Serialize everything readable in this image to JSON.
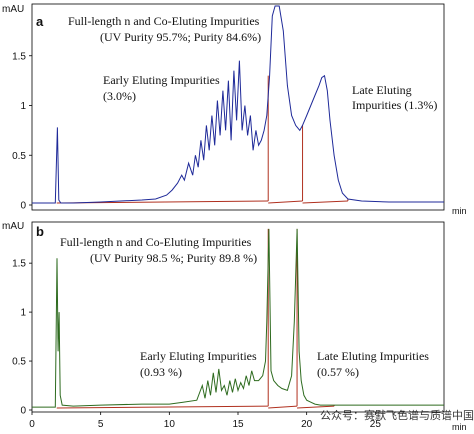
{
  "chart_data": [
    {
      "panel_label": "a",
      "type": "line",
      "y_unit": "mAU",
      "x_unit": "min",
      "xlim": [
        0,
        30
      ],
      "ylim": [
        0,
        2.0
      ],
      "y_ticks": [
        0,
        0.5,
        1.0,
        1.5
      ],
      "y_tick_labels": [
        "0",
        "0.5",
        "1",
        "1.5"
      ],
      "color": "#1f2a99",
      "annotations": [
        "Full-length n and Co-Eluting Impurities",
        "(UV Purity 95.7%; Purity 84.6%)",
        "Early Eluting Impurities",
        "(3.0%)",
        "Late Eluting",
        "Impurities (1.3%)"
      ],
      "baseline_segments": [
        [
          1.8,
          17.2
        ],
        [
          17.2,
          19.7
        ],
        [
          19.7,
          23.0
        ]
      ],
      "x": [
        0,
        1,
        1.7,
        1.85,
        1.95,
        2.1,
        3,
        5,
        8,
        9,
        9.8,
        10.2,
        10.6,
        10.9,
        11.1,
        11.4,
        11.7,
        11.9,
        12.1,
        12.3,
        12.5,
        12.7,
        12.9,
        13.1,
        13.3,
        13.5,
        13.7,
        13.9,
        14.1,
        14.3,
        14.5,
        14.7,
        14.9,
        15.1,
        15.3,
        15.5,
        15.7,
        15.9,
        16.1,
        16.3,
        16.5,
        16.7,
        16.9,
        17.1,
        17.3,
        17.5,
        17.7,
        17.85,
        18.0,
        18.3,
        18.6,
        18.9,
        19.2,
        19.5,
        19.7,
        20.0,
        20.3,
        20.6,
        20.9,
        21.1,
        21.3,
        21.5,
        21.7,
        22.0,
        22.3,
        22.6,
        23.0,
        24,
        26,
        28,
        30
      ],
      "y": [
        0.02,
        0.02,
        0.02,
        0.78,
        0.05,
        0.02,
        0.02,
        0.03,
        0.05,
        0.06,
        0.1,
        0.15,
        0.22,
        0.3,
        0.25,
        0.42,
        0.3,
        0.5,
        0.38,
        0.65,
        0.45,
        0.8,
        0.55,
        0.9,
        0.6,
        1.05,
        0.7,
        1.15,
        0.75,
        1.25,
        0.65,
        1.35,
        0.85,
        1.45,
        0.75,
        1.0,
        0.7,
        0.9,
        0.55,
        0.75,
        0.6,
        0.65,
        0.75,
        0.9,
        1.3,
        1.9,
        2.0,
        2.0,
        2.0,
        1.75,
        1.2,
        0.9,
        0.8,
        0.75,
        0.8,
        0.9,
        1.0,
        1.1,
        1.2,
        1.28,
        1.3,
        1.15,
        0.85,
        0.5,
        0.25,
        0.12,
        0.06,
        0.04,
        0.03,
        0.03,
        0.03
      ]
    },
    {
      "panel_label": "b",
      "type": "line",
      "y_unit": "mAU",
      "x_unit": "min",
      "xlim": [
        0,
        30
      ],
      "ylim": [
        0,
        1.9
      ],
      "y_ticks": [
        0,
        0.5,
        1.0,
        1.5
      ],
      "y_tick_labels": [
        "0",
        "0.5",
        "1",
        "1.5"
      ],
      "x_ticks": [
        0,
        5,
        10,
        15,
        20,
        25
      ],
      "color": "#2e6b1f",
      "annotations": [
        "Full-length n and Co-Eluting Impurities",
        "(UV Purity 98.5 %; Purity 89.8 %)",
        "Early Eluting Impurities",
        "(0.93 %)",
        "Late Eluting Impurities",
        "(0.57 %)"
      ],
      "baseline_segments": [
        [
          1.8,
          17.2
        ],
        [
          17.2,
          19.3
        ],
        [
          19.3,
          22.0
        ]
      ],
      "x": [
        0,
        1,
        1.7,
        1.82,
        1.9,
        1.97,
        2.05,
        2.2,
        3,
        5,
        8,
        10,
        11,
        12,
        12.4,
        12.6,
        12.8,
        13.0,
        13.2,
        13.4,
        13.6,
        13.8,
        14.0,
        14.2,
        14.4,
        14.6,
        14.8,
        15.0,
        15.2,
        15.4,
        15.6,
        15.8,
        16.0,
        16.2,
        16.5,
        16.8,
        17.0,
        17.1,
        17.25,
        17.4,
        17.6,
        17.9,
        18.2,
        18.6,
        18.9,
        19.1,
        19.3,
        19.45,
        19.6,
        19.8,
        20.0,
        20.3,
        20.6,
        21,
        22,
        24,
        26,
        28,
        30
      ],
      "y": [
        0.03,
        0.03,
        0.03,
        1.55,
        0.6,
        1.0,
        0.15,
        0.05,
        0.04,
        0.05,
        0.06,
        0.06,
        0.08,
        0.1,
        0.25,
        0.12,
        0.3,
        0.15,
        0.38,
        0.18,
        0.42,
        0.2,
        0.25,
        0.15,
        0.3,
        0.18,
        0.32,
        0.2,
        0.28,
        0.22,
        0.35,
        0.25,
        0.4,
        0.3,
        0.3,
        0.35,
        0.5,
        0.9,
        1.85,
        0.4,
        0.3,
        0.25,
        0.22,
        0.2,
        0.35,
        0.9,
        1.85,
        0.6,
        0.3,
        0.15,
        0.1,
        0.08,
        0.06,
        0.05,
        0.05,
        0.05,
        0.05,
        0.05,
        0.05
      ]
    }
  ],
  "watermark": "公众号：赛默飞色谱与质谱中国"
}
